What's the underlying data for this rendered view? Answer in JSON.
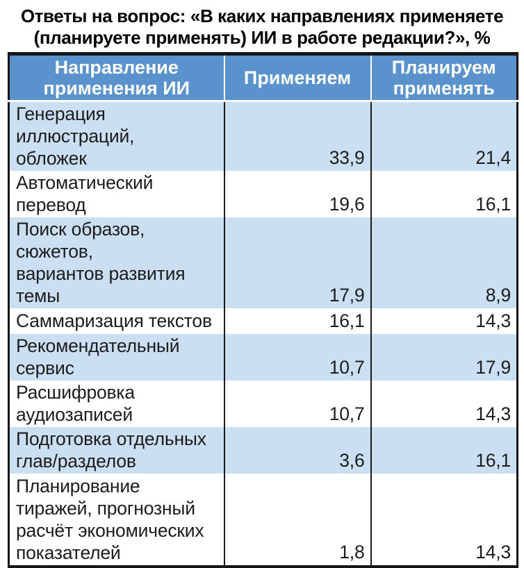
{
  "title": "Ответы на вопрос: «В каких направлениях применяете\n(планируете применять) ИИ в работе редакции?», %",
  "colors": {
    "header_bg": "#5992CC",
    "header_text": "#FFFFFF",
    "stripe_row_bg": "#CBDFF2",
    "plain_row_bg": "#FFFFFF",
    "frame_border": "#151515",
    "body_text": "#1C1C1C"
  },
  "table": {
    "columns": [
      "Направление\nприменения ИИ",
      "Применяем",
      "Планируем\nприменять"
    ],
    "rows": [
      {
        "label": "Генерация иллюстраций,\nобложек",
        "using": "33,9",
        "planning": "21,4"
      },
      {
        "label": "Автоматический перевод",
        "using": "19,6",
        "planning": "16,1"
      },
      {
        "label": "Поиск образов, сюжетов,\nвариантов развития\nтемы",
        "using": "17,9",
        "planning": "8,9"
      },
      {
        "label": "Саммаризация текстов",
        "using": "16,1",
        "planning": "14,3"
      },
      {
        "label": "Рекомендательный\nсервис",
        "using": "10,7",
        "planning": "17,9"
      },
      {
        "label": "Расшифровка\nаудиозаписей",
        "using": "10,7",
        "planning": "14,3"
      },
      {
        "label": "Подготовка отдельных\nглав/разделов",
        "using": "3,6",
        "planning": "16,1"
      },
      {
        "label": "Планирование\nтиражей, прогнозный\nрасчёт экономических\nпоказателей",
        "using": "1,8",
        "planning": "14,3"
      }
    ]
  },
  "chart_data": {
    "type": "table",
    "title": "Ответы на вопрос: «В каких направлениях применяете (планируете применять) ИИ в работе редакции?», %",
    "categories": [
      "Генерация иллюстраций, обложек",
      "Автоматический перевод",
      "Поиск образов, сюжетов, вариантов развития темы",
      "Саммаризация текстов",
      "Рекомендательный сервис",
      "Расшифровка аудиозаписей",
      "Подготовка отдельных глав/разделов",
      "Планирование тиражей, прогнозный расчёт экономических показателей"
    ],
    "series": [
      {
        "name": "Применяем",
        "values": [
          33.9,
          19.6,
          17.9,
          16.1,
          10.7,
          10.7,
          3.6,
          1.8
        ]
      },
      {
        "name": "Планируем применять",
        "values": [
          21.4,
          16.1,
          8.9,
          14.3,
          17.9,
          14.3,
          16.1,
          14.3
        ]
      }
    ],
    "units": "%"
  }
}
